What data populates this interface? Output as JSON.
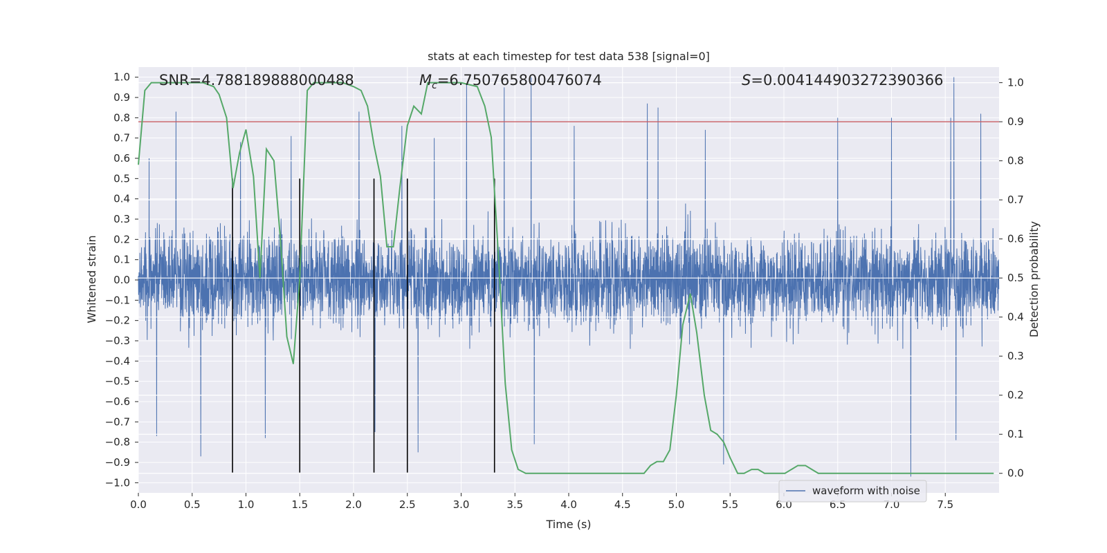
{
  "chart_data": {
    "type": "line",
    "title": "stats at each timestep for test data 538 [signal=0]",
    "xlabel": "Time (s)",
    "ylabel_left": "Whitened strain",
    "ylabel_right": "Detection probability",
    "xlim": [
      0,
      8
    ],
    "ylim_left": [
      -1.05,
      1.05
    ],
    "ylim_right": [
      -0.05,
      1.04
    ],
    "x_ticks": [
      0.0,
      0.5,
      1.0,
      1.5,
      2.0,
      2.5,
      3.0,
      3.5,
      4.0,
      4.5,
      5.0,
      5.5,
      6.0,
      6.5,
      7.0,
      7.5
    ],
    "x_tick_labels": [
      "0.0",
      "0.5",
      "1.0",
      "1.5",
      "2.0",
      "2.5",
      "3.0",
      "3.5",
      "4.0",
      "4.5",
      "5.0",
      "5.5",
      "6.0",
      "6.5",
      "7.0",
      "7.5"
    ],
    "y_ticks_left": [
      1.0,
      0.9,
      0.8,
      0.7,
      0.6,
      0.5,
      0.4,
      0.3,
      0.2,
      0.1,
      0.0,
      -0.1,
      -0.2,
      -0.3,
      -0.4,
      -0.5,
      -0.6,
      -0.7,
      -0.8,
      -0.9,
      -1.0
    ],
    "y_tick_labels_left": [
      "1.0",
      "0.9",
      "0.8",
      "0.7",
      "0.6",
      "0.5",
      "0.4",
      "0.3",
      "0.2",
      "0.1",
      "0.0",
      "−0.1",
      "−0.2",
      "−0.3",
      "−0.4",
      "−0.5",
      "−0.6",
      "−0.7",
      "−0.8",
      "−0.9",
      "−1.0"
    ],
    "y_ticks_right": [
      1.0,
      0.9,
      0.8,
      0.7,
      0.6,
      0.5,
      0.4,
      0.3,
      0.2,
      0.1,
      0.0
    ],
    "y_tick_labels_right": [
      "1.0",
      "0.9",
      "0.8",
      "0.7",
      "0.6",
      "0.5",
      "0.4",
      "0.3",
      "0.2",
      "0.1",
      "0.0"
    ],
    "annotations": {
      "snr": "SNR=4.788189888000488",
      "mc_symbol": "M",
      "mc_sub": "c",
      "mc_value": "=6.750765800476074",
      "s_symbol": "S",
      "s_value": "=0.004144903272390366"
    },
    "threshold_right": 0.9,
    "vertical_lines_x": [
      0.875,
      1.5,
      2.19,
      2.5,
      3.31
    ],
    "vertical_lines_yrange": [
      -0.95,
      0.5
    ],
    "legend": {
      "label": "waveform with noise",
      "placement": "lower-center-right"
    },
    "series": [
      {
        "name": "waveform with noise",
        "axis": "left",
        "color": "#4c72b0",
        "style": "dense noise, dt=1/512 s, typical band ±0.4, peaks to ±1.0",
        "noise_sd": 0.22,
        "peaks": [
          {
            "x": 0.1,
            "y": 0.6
          },
          {
            "x": 0.17,
            "y": -0.77
          },
          {
            "x": 0.35,
            "y": 0.83
          },
          {
            "x": 0.58,
            "y": -0.87
          },
          {
            "x": 0.95,
            "y": 0.68
          },
          {
            "x": 1.13,
            "y": -0.2
          },
          {
            "x": 1.18,
            "y": -0.78
          },
          {
            "x": 1.42,
            "y": 0.71
          },
          {
            "x": 2.05,
            "y": 0.83
          },
          {
            "x": 2.2,
            "y": -0.75
          },
          {
            "x": 2.45,
            "y": 0.76
          },
          {
            "x": 2.6,
            "y": -0.85
          },
          {
            "x": 2.75,
            "y": 0.7
          },
          {
            "x": 3.05,
            "y": 0.97
          },
          {
            "x": 3.4,
            "y": 0.95
          },
          {
            "x": 3.65,
            "y": 1.0
          },
          {
            "x": 3.68,
            "y": -0.81
          },
          {
            "x": 4.05,
            "y": 0.76
          },
          {
            "x": 4.73,
            "y": 0.87
          },
          {
            "x": 4.83,
            "y": 0.85
          },
          {
            "x": 5.27,
            "y": 0.74
          },
          {
            "x": 5.44,
            "y": -0.91
          },
          {
            "x": 6.5,
            "y": 0.8
          },
          {
            "x": 7.0,
            "y": 0.8
          },
          {
            "x": 7.18,
            "y": -0.97
          },
          {
            "x": 7.55,
            "y": 0.8
          },
          {
            "x": 7.58,
            "y": 1.0
          },
          {
            "x": 7.6,
            "y": -0.79
          },
          {
            "x": 7.83,
            "y": 0.82
          }
        ]
      },
      {
        "name": "detection probability",
        "axis": "right",
        "color": "#55a868",
        "x": [
          0.0,
          0.06,
          0.12,
          0.2,
          0.3,
          0.4,
          0.5,
          0.6,
          0.7,
          0.75,
          0.82,
          0.88,
          0.94,
          1.0,
          1.07,
          1.13,
          1.19,
          1.26,
          1.32,
          1.38,
          1.44,
          1.5,
          1.57,
          1.63,
          1.7,
          1.8,
          1.9,
          2.0,
          2.07,
          2.13,
          2.19,
          2.25,
          2.31,
          2.37,
          2.43,
          2.5,
          2.56,
          2.63,
          2.69,
          2.75,
          2.85,
          3.0,
          3.15,
          3.22,
          3.28,
          3.35,
          3.41,
          3.47,
          3.53,
          3.6,
          3.8,
          4.0,
          4.2,
          4.4,
          4.6,
          4.7,
          4.76,
          4.82,
          4.88,
          4.94,
          5.0,
          5.06,
          5.13,
          5.19,
          5.26,
          5.32,
          5.38,
          5.44,
          5.5,
          5.57,
          5.63,
          5.7,
          5.76,
          5.82,
          5.88,
          5.95,
          6.01,
          6.07,
          6.13,
          6.2,
          6.26,
          6.32,
          6.4,
          6.6,
          6.8,
          7.0,
          7.1,
          7.2,
          7.3,
          7.4,
          7.5,
          7.6,
          7.7,
          7.8,
          7.95
        ],
        "y": [
          0.79,
          0.98,
          1.0,
          1.0,
          1.0,
          1.0,
          1.0,
          1.0,
          0.99,
          0.97,
          0.91,
          0.73,
          0.82,
          0.88,
          0.76,
          0.5,
          0.83,
          0.8,
          0.6,
          0.35,
          0.28,
          0.5,
          0.98,
          1.0,
          1.0,
          1.0,
          1.0,
          0.99,
          0.98,
          0.94,
          0.84,
          0.76,
          0.58,
          0.58,
          0.73,
          0.89,
          0.94,
          0.92,
          1.0,
          1.0,
          1.0,
          1.0,
          0.99,
          0.94,
          0.86,
          0.54,
          0.23,
          0.06,
          0.01,
          0.0,
          0.0,
          0.0,
          0.0,
          0.0,
          0.0,
          0.0,
          0.02,
          0.03,
          0.03,
          0.06,
          0.2,
          0.38,
          0.46,
          0.36,
          0.2,
          0.11,
          0.1,
          0.08,
          0.04,
          0.0,
          0.0,
          0.01,
          0.01,
          0.0,
          0.0,
          0.0,
          0.0,
          0.01,
          0.02,
          0.02,
          0.01,
          0.0,
          0.0,
          0.0,
          0.0,
          0.0,
          0.0,
          0.0,
          0.0,
          0.0,
          0.0,
          0.0,
          0.0,
          0.0,
          0.0
        ]
      }
    ]
  },
  "colors": {
    "background": "#eaeaf2",
    "grid": "#ffffff",
    "strain": "#4c72b0",
    "probability": "#55a868",
    "threshold": "#c44e52",
    "vlines": "#000000"
  }
}
